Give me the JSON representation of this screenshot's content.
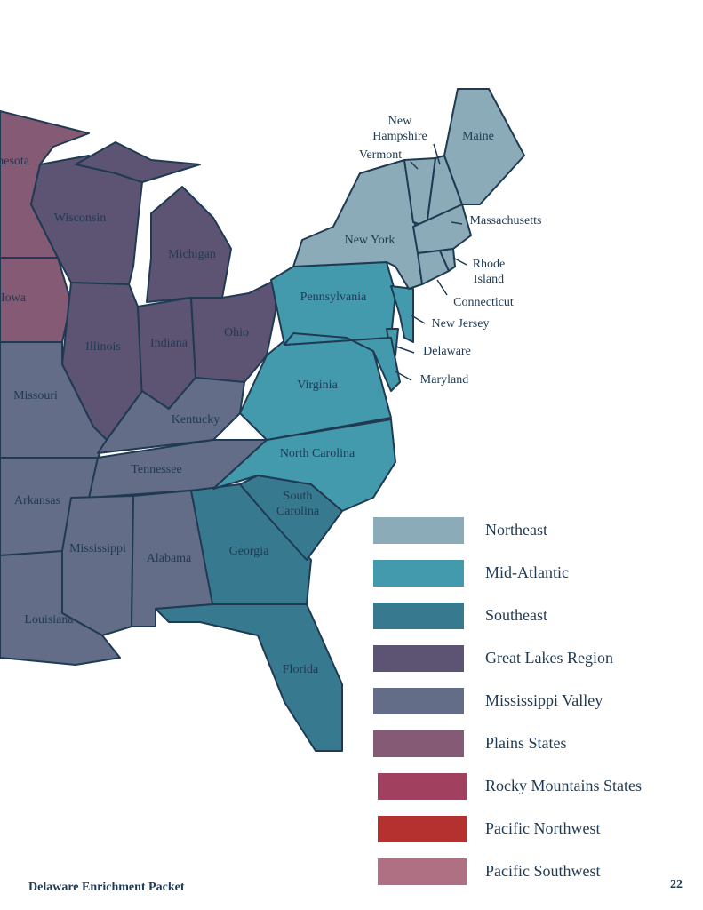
{
  "map": {
    "labels": [
      "Minnesota",
      "Wisconsin",
      "Michigan",
      "Iowa",
      "Illinois",
      "Indiana",
      "Ohio",
      "Missouri",
      "Kentucky",
      "Tennessee",
      "Arkansas",
      "Mississippi",
      "Alabama",
      "Louisiana",
      "Georgia",
      [
        "South",
        "Carolina"
      ],
      "Florida",
      "North Carolina",
      "Virginia",
      "Pennsylvania",
      "New York",
      "Vermont",
      [
        "New",
        "Hampshire"
      ],
      "Maine",
      "Massachusetts",
      [
        "Rhode",
        "Island"
      ],
      "Connecticut",
      "New Jersey",
      "Delaware",
      "Maryland"
    ]
  },
  "legend": [
    {
      "label": "Northeast",
      "color": "#8aabb7"
    },
    {
      "label": "Mid-Atlantic",
      "color": "#449aad"
    },
    {
      "label": "Southeast",
      "color": "#377a90"
    },
    {
      "label": "Great Lakes Region",
      "color": "#5d5474"
    },
    {
      "label": "Mississippi Valley",
      "color": "#636d87"
    },
    {
      "label": "Plains States",
      "color": "#855a74"
    },
    {
      "label": "Rocky Mountains States",
      "color": "#a2415f"
    },
    {
      "label": "Pacific Northwest",
      "color": "#b5312f"
    },
    {
      "label": "Pacific Southwest",
      "color": "#b07084"
    }
  ],
  "footer": {
    "title": "Delaware Enrichment Packet",
    "page": "22"
  }
}
